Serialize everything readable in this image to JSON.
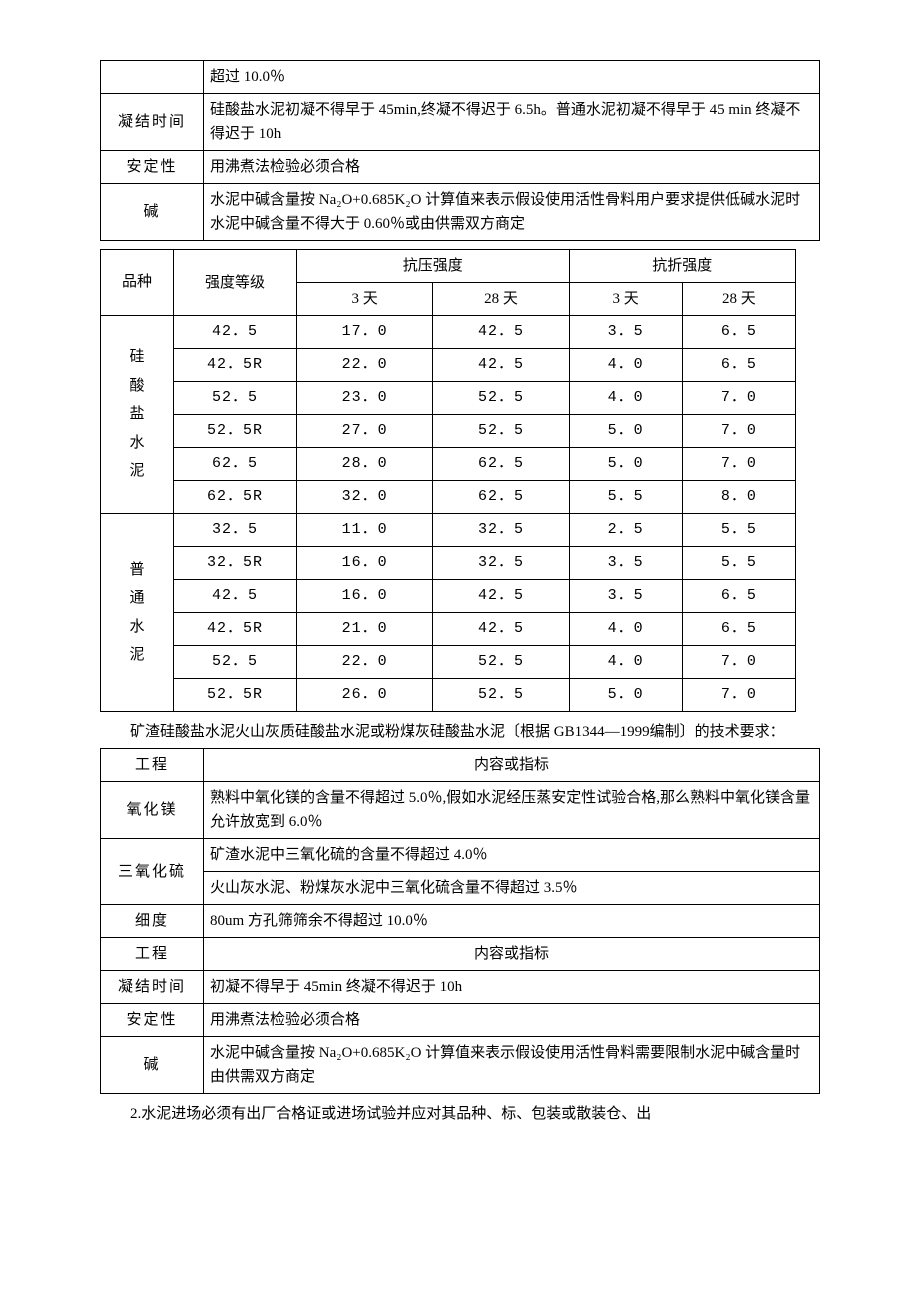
{
  "table1": {
    "rows": [
      {
        "label": "",
        "content": "超过 10.0％"
      },
      {
        "label": "凝结时间",
        "content": "硅酸盐水泥初凝不得早于 45min,终凝不得迟于 6.5h。普通水泥初凝不得早于 45 min 终凝不得迟于 10h"
      },
      {
        "label": "安定性",
        "content": "用沸煮法检验必须合格"
      },
      {
        "label": "碱",
        "content": "水泥中碱含量按 Na₂O+0.685K₂O 计算值来表示假设使用活性骨料用户要求提供低碱水泥时水泥中碱含量不得大于 0.60％或由供需双方商定"
      }
    ]
  },
  "strength": {
    "header": {
      "col1": "品种",
      "col2": "强度等级",
      "comp": "抗压强度",
      "flex": "抗折强度",
      "d3": "3 天",
      "d28": "28 天"
    },
    "groups": [
      {
        "label": "硅\n酸\n盐\n水\n泥",
        "rows": [
          {
            "grade": "42．5",
            "c3": "17．0",
            "c28": "42．5",
            "f3": "3．5",
            "f28": "6．5"
          },
          {
            "grade": "42．5R",
            "c3": "22．0",
            "c28": "42．5",
            "f3": "4．0",
            "f28": "6．5"
          },
          {
            "grade": "52．5",
            "c3": "23．0",
            "c28": "52．5",
            "f3": "4．0",
            "f28": "7．0"
          },
          {
            "grade": "52．5R",
            "c3": "27．0",
            "c28": "52．5",
            "f3": "5．0",
            "f28": "7．0"
          },
          {
            "grade": "62．5",
            "c3": "28．0",
            "c28": "62．5",
            "f3": "5．0",
            "f28": "7．0"
          },
          {
            "grade": "62．5R",
            "c3": "32．0",
            "c28": "62．5",
            "f3": "5．5",
            "f28": "8．0"
          }
        ]
      },
      {
        "label": "普\n通\n水\n泥",
        "rows": [
          {
            "grade": "32．5",
            "c3": "11．0",
            "c28": "32．5",
            "f3": "2．5",
            "f28": "5．5"
          },
          {
            "grade": "32．5R",
            "c3": "16．0",
            "c28": "32．5",
            "f3": "3．5",
            "f28": "5．5"
          },
          {
            "grade": "42．5",
            "c3": "16．0",
            "c28": "42．5",
            "f3": "3．5",
            "f28": "6．5"
          },
          {
            "grade": "42．5R",
            "c3": "21．0",
            "c28": "42．5",
            "f3": "4．0",
            "f28": "6．5"
          },
          {
            "grade": "52．5",
            "c3": "22．0",
            "c28": "52．5",
            "f3": "4．0",
            "f28": "7．0"
          },
          {
            "grade": "52．5R",
            "c3": "26．0",
            "c28": "52．5",
            "f3": "5．0",
            "f28": "7．0"
          }
        ]
      }
    ]
  },
  "para1": "矿渣硅酸盐水泥火山灰质硅酸盐水泥或粉煤灰硅酸盐水泥〔根据 GB1344—1999编制〕的技术要求：",
  "table3": {
    "rows": [
      {
        "label": "工程",
        "content": "内容或指标",
        "contentCenter": true
      },
      {
        "label": "氧化镁",
        "content": "熟料中氧化镁的含量不得超过 5.0％,假如水泥经压蒸安定性试验合格,那么熟料中氧化镁含量允许放宽到 6.0％"
      },
      {
        "label": "三氧化硫",
        "content": "矿渣水泥中三氧化硫的含量不得超过 4.0％\n火山灰水泥、粉煤灰水泥中三氧化硫含量不得超过 3.5％",
        "split": true
      },
      {
        "label": "细度",
        "content": "80um 方孔筛筛余不得超过 10.0％"
      },
      {
        "label": "工程",
        "content": "内容或指标",
        "contentCenter": true
      },
      {
        "label": "凝结时间",
        "content": "初凝不得早于 45min 终凝不得迟于 10h"
      },
      {
        "label": "安定性",
        "content": "用沸煮法检验必须合格"
      },
      {
        "label": "碱",
        "content": "水泥中碱含量按 Na₂O+0.685K₂O 计算值来表示假设使用活性骨料需要限制水泥中碱含量时由供需双方商定"
      }
    ]
  },
  "para2": "2.水泥进场必须有出厂合格证或进场试验并应对其品种、标、包装或散装仓、出"
}
